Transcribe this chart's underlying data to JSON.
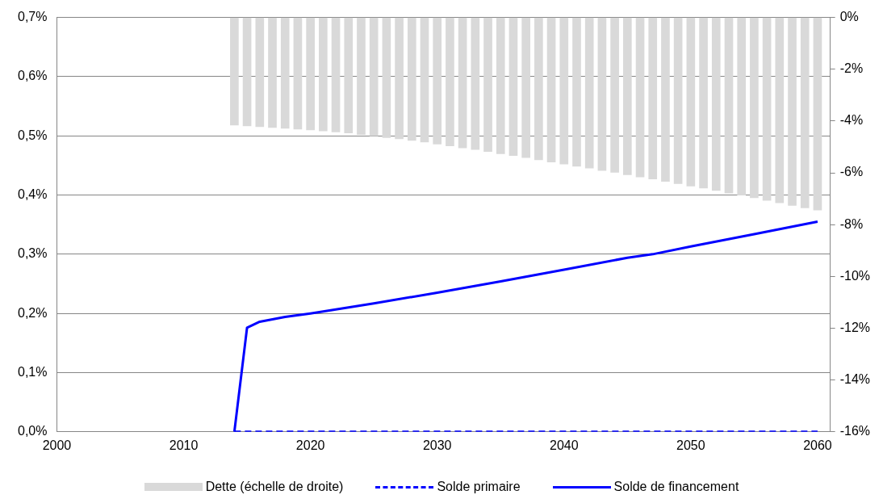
{
  "chart_data": {
    "type": "line",
    "xlim": [
      2000,
      2061
    ],
    "xticks": [
      2000,
      2010,
      2020,
      2030,
      2040,
      2050,
      2060
    ],
    "ylim": [
      0,
      0.7
    ],
    "yticks": [
      {
        "value": 0,
        "label": "0,0%"
      },
      {
        "value": 0.1,
        "label": "0,1%"
      },
      {
        "value": 0.2,
        "label": "0,2%"
      },
      {
        "value": 0.3,
        "label": "0,3%"
      },
      {
        "value": 0.4,
        "label": "0,4%"
      },
      {
        "value": 0.5,
        "label": "0,5%"
      },
      {
        "value": 0.6,
        "label": "0,6%"
      },
      {
        "value": 0.7,
        "label": "0,7%"
      }
    ],
    "y2lim": [
      -16,
      0
    ],
    "y2ticks": [
      {
        "value": -16,
        "label": "-16%"
      },
      {
        "value": -14,
        "label": "-14%"
      },
      {
        "value": -12,
        "label": "-12%"
      },
      {
        "value": -10,
        "label": "-10%"
      },
      {
        "value": -8,
        "label": "-8%"
      },
      {
        "value": -6,
        "label": "-6%"
      },
      {
        "value": -4,
        "label": "-4%"
      },
      {
        "value": -2,
        "label": "-2%"
      },
      {
        "value": 0,
        "label": "0%"
      }
    ],
    "grid": "y",
    "legend": "bottom",
    "marker": "none",
    "series": [
      {
        "name": "Dette (échelle de droite)",
        "type": "bar",
        "axis": "y2",
        "color": "#d9d9d9",
        "x": [
          2014,
          2015,
          2016,
          2017,
          2018,
          2019,
          2020,
          2021,
          2022,
          2023,
          2024,
          2025,
          2026,
          2027,
          2028,
          2029,
          2030,
          2031,
          2032,
          2033,
          2034,
          2035,
          2036,
          2037,
          2038,
          2039,
          2040,
          2041,
          2042,
          2043,
          2044,
          2045,
          2046,
          2047,
          2048,
          2049,
          2050,
          2051,
          2052,
          2053,
          2054,
          2055,
          2056,
          2057,
          2058,
          2059,
          2060
        ],
        "values": [
          -4.16,
          -4.19,
          -4.22,
          -4.25,
          -4.28,
          -4.31,
          -4.34,
          -4.38,
          -4.42,
          -4.46,
          -4.52,
          -4.57,
          -4.64,
          -4.69,
          -4.75,
          -4.81,
          -4.89,
          -4.96,
          -5.04,
          -5.1,
          -5.18,
          -5.26,
          -5.33,
          -5.41,
          -5.5,
          -5.58,
          -5.66,
          -5.75,
          -5.82,
          -5.91,
          -5.98,
          -6.07,
          -6.16,
          -6.24,
          -6.33,
          -6.42,
          -6.51,
          -6.59,
          -6.68,
          -6.78,
          -6.86,
          -6.96,
          -7.06,
          -7.16,
          -7.26,
          -7.35,
          -7.44
        ]
      },
      {
        "name": "Solde primaire",
        "line_style": "dashed",
        "color": "#0000ff",
        "x": [
          2014,
          2060
        ],
        "values": [
          0,
          0
        ]
      },
      {
        "name": "Solde de financement",
        "line_style": "solid",
        "color": "#0000ff",
        "x": [
          2014,
          2015,
          2016,
          2018,
          2020,
          2025,
          2030,
          2035,
          2040,
          2045,
          2047,
          2050,
          2055,
          2060
        ],
        "values": [
          0,
          0.176,
          0.186,
          0.194,
          0.2,
          0.217,
          0.235,
          0.254,
          0.274,
          0.294,
          0.3,
          0.313,
          0.334,
          0.355
        ]
      }
    ]
  }
}
